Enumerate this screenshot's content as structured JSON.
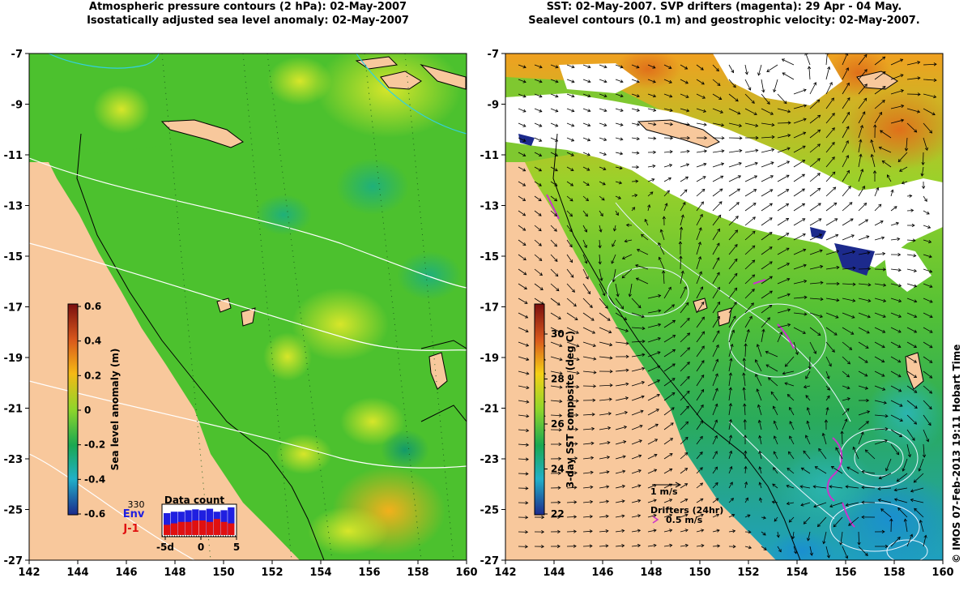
{
  "left_panel": {
    "title_line1": "Atmospheric pressure contours (2 hPa): 02-May-2007",
    "title_line2": "Isostatically adjusted sea level anomaly: 02-May-2007",
    "colorbar": {
      "label": "Sea level anomaly (m)",
      "ticks": [
        "0.6",
        "0.4",
        "0.2",
        "0",
        "-0.2",
        "-0.4",
        "-0.6"
      ],
      "colors": [
        "#7a0f0f",
        "#d9581c",
        "#f5b915",
        "#8fd62b",
        "#1aa851",
        "#22b0c8",
        "#1c2a8c"
      ]
    },
    "data_count": {
      "title": "Data count",
      "max_label": "330",
      "env_label": "Env",
      "j1_label": "J-1",
      "xticks": [
        "-5d",
        "0",
        "5"
      ],
      "env_fraction": [
        0.75,
        0.8,
        0.8,
        0.85,
        0.88,
        0.85,
        0.9,
        0.8,
        0.85,
        0.95
      ],
      "j1_fraction": [
        0.35,
        0.4,
        0.45,
        0.45,
        0.5,
        0.5,
        0.45,
        0.55,
        0.45,
        0.4
      ]
    }
  },
  "right_panel": {
    "title_line1": "SST: 02-May-2007. SVP drifters (magenta): 29 Apr - 04 May.",
    "title_line2": "Sealevel contours (0.1 m) and geostrophic velocity: 02-May-2007.",
    "colorbar": {
      "label": "3-day SST composite (deg C)",
      "ticks": [
        "30",
        "28",
        "26",
        "24",
        "22"
      ],
      "colors": [
        "#7a0f0f",
        "#d9581c",
        "#f5d015",
        "#8fd62b",
        "#1aa851",
        "#22b0c8",
        "#1c2a8c"
      ]
    },
    "velocity_key": "1 m/s",
    "drifters_label": "Drifters (24hr)",
    "drifters_speed": "0.5 m/s"
  },
  "axes": {
    "x_ticks": [
      "142",
      "144",
      "146",
      "148",
      "150",
      "152",
      "154",
      "156",
      "158",
      "160"
    ],
    "y_ticks": [
      "-7",
      "-9",
      "-11",
      "-13",
      "-15",
      "-17",
      "-19",
      "-21",
      "-23",
      "-25",
      "-27"
    ]
  },
  "colors": {
    "land": "#f8c89c",
    "ocean_green": "#4cc12e",
    "sst_white": "#ffffff",
    "drifter": "#cc33cc"
  },
  "credit": "© IMOS 07-Feb-2013 19:11 Hobart Time"
}
